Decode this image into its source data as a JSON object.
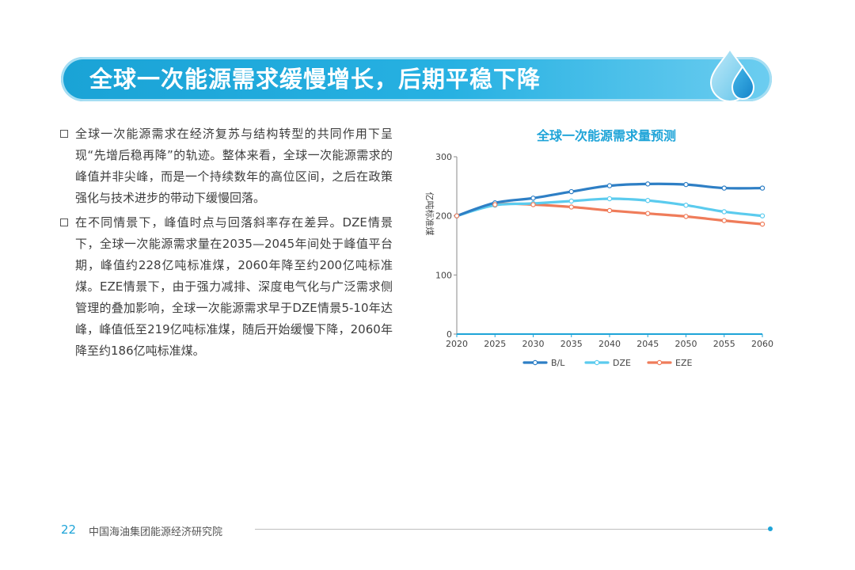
{
  "header": {
    "title": "全球一次能源需求缓慢增长，后期平稳下降"
  },
  "bullets": [
    "全球一次能源需求在经济复苏与结构转型的共同作用下呈现“先增后稳再降”的轨迹。整体来看，全球一次能源需求的峰值并非尖峰，而是一个持续数年的高位区间，之后在政策强化与技术进步的带动下缓慢回落。",
    "在不同情景下，峰值时点与回落斜率存在差异。DZE情景下，全球一次能源需求量在2035—2045年间处于峰值平台期，峰值约228亿吨标准煤，2060年降至约200亿吨标准煤。EZE情景下，由于强力减排、深度电气化与广泛需求侧管理的叠加影响，全球一次能源需求早于DZE情景5-10年达峰，峰值低至219亿吨标准煤，随后开始缓慢下降，2060年降至约186亿吨标准煤。"
  ],
  "footer": {
    "page": "22",
    "org": "中国海油集团能源经济研究院"
  },
  "chart_data": {
    "type": "line",
    "title": "全球一次能源需求量预测",
    "xlabel": "",
    "ylabel": "亿吨标准煤",
    "x": [
      2020,
      2025,
      2030,
      2035,
      2040,
      2045,
      2050,
      2055,
      2060
    ],
    "ylim": [
      0,
      300
    ],
    "yticks": [
      0,
      100,
      200,
      300
    ],
    "grid": false,
    "legend": "bottom",
    "series": [
      {
        "name": "B/L",
        "color": "#2e7fc5",
        "values": [
          200,
          222,
          230,
          241,
          251,
          254,
          253,
          247,
          247
        ]
      },
      {
        "name": "DZE",
        "color": "#5bcbee",
        "values": [
          200,
          218,
          221,
          225,
          229,
          226,
          218,
          207,
          200
        ]
      },
      {
        "name": "EZE",
        "color": "#ef7c5a",
        "values": [
          200,
          219,
          219,
          215,
          209,
          204,
          199,
          192,
          186
        ]
      }
    ]
  }
}
